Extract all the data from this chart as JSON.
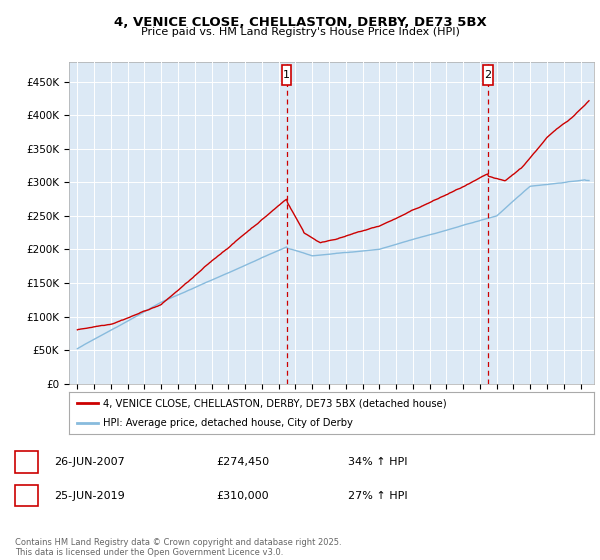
{
  "title_line1": "4, VENICE CLOSE, CHELLASTON, DERBY, DE73 5BX",
  "title_line2": "Price paid vs. HM Land Registry's House Price Index (HPI)",
  "ylabel_ticks": [
    "£0",
    "£50K",
    "£100K",
    "£150K",
    "£200K",
    "£250K",
    "£300K",
    "£350K",
    "£400K",
    "£450K"
  ],
  "ytick_vals": [
    0,
    50000,
    100000,
    150000,
    200000,
    250000,
    300000,
    350000,
    400000,
    450000
  ],
  "ylim": [
    0,
    480000
  ],
  "xlim_start": 1994.5,
  "xlim_end": 2025.8,
  "marker1_x": 2007.48,
  "marker2_x": 2019.48,
  "sale1_date": "26-JUN-2007",
  "sale1_price": "£274,450",
  "sale1_hpi": "34% ↑ HPI",
  "sale2_date": "25-JUN-2019",
  "sale2_price": "£310,000",
  "sale2_hpi": "27% ↑ HPI",
  "legend_red": "4, VENICE CLOSE, CHELLASTON, DERBY, DE73 5BX (detached house)",
  "legend_blue": "HPI: Average price, detached house, City of Derby",
  "footer": "Contains HM Land Registry data © Crown copyright and database right 2025.\nThis data is licensed under the Open Government Licence v3.0.",
  "bg_color": "#dce9f5",
  "red_color": "#cc0000",
  "blue_color": "#88bbdd",
  "grid_color": "#ffffff"
}
